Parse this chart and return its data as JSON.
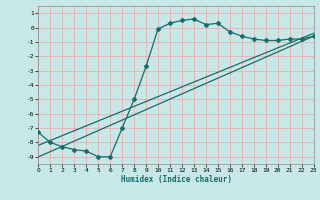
{
  "title": "",
  "xlabel": "Humidex (Indice chaleur)",
  "ylabel": "",
  "background_color": "#c8e8e8",
  "grid_color": "#e8b0b0",
  "line_color": "#1a6b6b",
  "xlim": [
    0,
    23
  ],
  "ylim": [
    -9.5,
    1.5
  ],
  "xticks": [
    0,
    1,
    2,
    3,
    4,
    5,
    6,
    7,
    8,
    9,
    10,
    11,
    12,
    13,
    14,
    15,
    16,
    17,
    18,
    19,
    20,
    21,
    22,
    23
  ],
  "yticks": [
    -9,
    -8,
    -7,
    -6,
    -5,
    -4,
    -3,
    -2,
    -1,
    0,
    1
  ],
  "line1_x": [
    0,
    1,
    2,
    3,
    4,
    5,
    6,
    7,
    8,
    9,
    10,
    11,
    12,
    13,
    14,
    15,
    16,
    17,
    18,
    19,
    20,
    21,
    22,
    23
  ],
  "line1_y": [
    -7.3,
    -8.0,
    -8.3,
    -8.5,
    -8.6,
    -9.0,
    -9.0,
    -7.0,
    -5.0,
    -2.7,
    -0.1,
    0.3,
    0.5,
    0.6,
    0.2,
    0.3,
    -0.3,
    -0.6,
    -0.8,
    -0.9,
    -0.9,
    -0.8,
    -0.8,
    -0.6
  ],
  "line2_x": [
    0,
    23
  ],
  "line2_y": [
    -9.0,
    -0.6
  ],
  "line3_x": [
    0,
    23
  ],
  "line3_y": [
    -8.2,
    -0.4
  ],
  "marker": "D",
  "markersize": 2.0,
  "linewidth": 0.9
}
